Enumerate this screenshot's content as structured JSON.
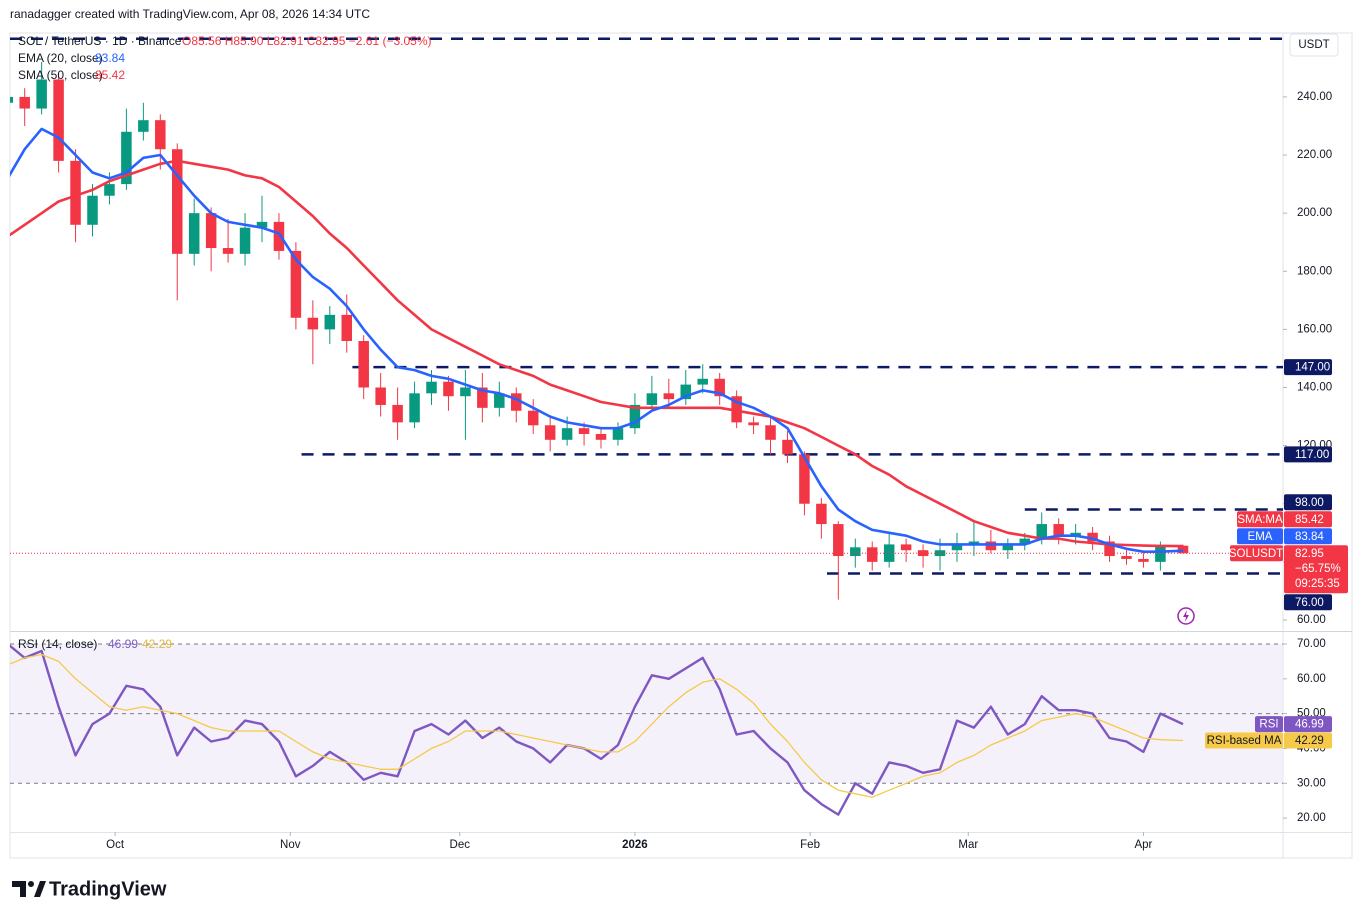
{
  "attribution": "ranadagger created with TradingView.com, Apr 08, 2026 14:34 UTC",
  "brand": "TradingView",
  "chart_data": [
    {
      "type": "candlestick",
      "title": "SOL / TetherUS · 1D · Binance",
      "ohlc_text": "O85.56 H85.90 L82.91 C82.95 −2.61 (−3.05%)",
      "unit": "USDT",
      "x": [
        -19,
        -16,
        -13,
        -10,
        -7,
        -4,
        -1,
        2,
        5,
        8,
        11,
        14,
        17,
        20,
        23,
        26,
        29,
        32,
        35,
        38,
        41,
        44,
        47,
        50,
        53,
        56,
        59,
        62,
        65,
        68,
        71,
        74,
        77,
        80,
        83,
        86,
        89,
        92,
        95,
        98,
        101,
        104,
        107,
        110,
        113,
        116,
        119,
        122,
        125,
        128,
        131,
        134,
        137,
        140,
        143,
        146,
        149,
        152,
        155,
        158,
        161,
        164,
        167,
        170,
        173,
        176,
        179,
        182,
        185,
        189
      ],
      "open": [
        238,
        240,
        236,
        246,
        218,
        196,
        206,
        210,
        228,
        232,
        222,
        186,
        200,
        188,
        186,
        195,
        197,
        187,
        164,
        160,
        165,
        156,
        140,
        134,
        128,
        138,
        142,
        137,
        140,
        133,
        138,
        132,
        127,
        122,
        126,
        124,
        122,
        126,
        134,
        138,
        136,
        141,
        143,
        137,
        128,
        127,
        122,
        117,
        100,
        93,
        82,
        85,
        80,
        86,
        84,
        82,
        84,
        86,
        87,
        84,
        86,
        88,
        93,
        89,
        90,
        87,
        82,
        81,
        80,
        85.56
      ],
      "high": [
        245,
        243,
        252,
        248,
        222,
        210,
        214,
        236,
        238,
        234,
        224,
        205,
        202,
        198,
        200,
        206,
        200,
        190,
        170,
        168,
        172,
        158,
        145,
        140,
        142,
        146,
        144,
        146,
        145,
        142,
        140,
        136,
        130,
        130,
        128,
        126,
        128,
        138,
        144,
        143,
        146,
        148,
        145,
        139,
        130,
        130,
        125,
        118,
        102,
        94,
        88,
        87,
        90,
        88,
        86,
        88,
        90,
        94,
        91,
        88,
        90,
        97,
        95,
        93,
        92,
        89,
        84,
        83,
        87,
        85.9
      ],
      "low": [
        232,
        230,
        234,
        214,
        190,
        192,
        203,
        208,
        225,
        215,
        170,
        182,
        180,
        183,
        182,
        190,
        184,
        160,
        148,
        155,
        152,
        136,
        130,
        122,
        126,
        134,
        132,
        122,
        128,
        130,
        128,
        124,
        118,
        120,
        120,
        119,
        120,
        124,
        132,
        133,
        134,
        138,
        134,
        126,
        124,
        117,
        114,
        96,
        88,
        67,
        78,
        77,
        78,
        80,
        78,
        77,
        80,
        82,
        83,
        81,
        84,
        86,
        86,
        86,
        84,
        80,
        79,
        78,
        77,
        82.91
      ],
      "close": [
        240,
        236,
        246,
        218,
        196,
        206,
        210,
        228,
        232,
        222,
        186,
        200,
        188,
        186,
        195,
        197,
        187,
        164,
        160,
        165,
        156,
        140,
        134,
        128,
        138,
        142,
        137,
        140,
        133,
        138,
        132,
        127,
        122,
        126,
        124,
        122,
        126,
        134,
        138,
        136,
        141,
        143,
        137,
        128,
        127,
        122,
        117,
        100,
        93,
        82,
        85,
        80,
        86,
        84,
        82,
        84,
        86,
        87,
        84,
        86,
        88,
        93,
        89,
        90,
        87,
        82,
        81,
        80,
        85.56,
        82.95
      ],
      "up_color": "#089981",
      "down_color": "#f23645",
      "series": [
        {
          "name": "SMA:MA",
          "legend": "SMA (50, close)",
          "color": "#f23645",
          "last": 85.42,
          "values": [
            192,
            196,
            200,
            204,
            206,
            208,
            211,
            213,
            215,
            217,
            218,
            217,
            216,
            215,
            213,
            212,
            209,
            204,
            199,
            193,
            188,
            182,
            176,
            170,
            165,
            160,
            157,
            154,
            151,
            148,
            146,
            144,
            141,
            139,
            137,
            135,
            134,
            133,
            133,
            133,
            133,
            133,
            133,
            132,
            131,
            130,
            128,
            126,
            123,
            120,
            117,
            113,
            110,
            106,
            103,
            100,
            97,
            94,
            92,
            90,
            89,
            88,
            88,
            87,
            86.5,
            86,
            85.8,
            85.6,
            85.5,
            85.42
          ]
        },
        {
          "name": "EMA",
          "legend": "EMA (20, close)",
          "color": "#2962ff",
          "last": 83.84,
          "values": [
            212,
            222,
            229,
            226,
            220,
            214,
            212,
            214,
            219,
            220,
            213,
            206,
            200,
            197,
            196,
            195,
            193,
            184,
            178,
            174,
            168,
            160,
            153,
            147,
            146,
            144,
            143,
            141,
            139,
            138,
            136,
            133,
            130,
            128,
            127,
            126,
            126,
            128,
            132,
            134,
            137,
            139,
            138,
            135,
            133,
            130,
            126,
            116,
            106,
            98,
            94,
            91,
            90,
            89,
            87,
            86,
            86,
            86,
            86,
            86,
            86,
            88,
            89,
            89,
            88,
            86,
            84.5,
            83.5,
            83.5,
            83.84
          ]
        }
      ],
      "price": {
        "name": "SOLUSDT",
        "value": 82.95,
        "change": "−65.75%",
        "countdown": "09:25:35",
        "color": "#f23645"
      },
      "level_color": "#0d1a63",
      "levels": [
        {
          "value": 260,
          "x0": -18.6
        },
        {
          "value": 147,
          "label": "147.00",
          "x0": 42
        },
        {
          "value": 117,
          "label": "117.00",
          "x0": 33
        },
        {
          "value": 98,
          "label": "98.00",
          "x0": 161
        },
        {
          "value": 76,
          "label": "76.00",
          "x0": 126
        }
      ],
      "xlim": [
        -18.6,
        206.7
      ],
      "ylim": [
        56.2,
        262
      ],
      "yticks": [
        {
          "value": 60,
          "label": "60.00"
        },
        {
          "value": 80,
          "label": "80.00"
        },
        {
          "value": 100,
          "label": "100.00"
        },
        {
          "value": 120,
          "label": "120.00"
        },
        {
          "value": 140,
          "label": "140.00"
        },
        {
          "value": 160,
          "label": "160.00"
        },
        {
          "value": 180,
          "label": "180.00"
        },
        {
          "value": 200,
          "label": "200.00"
        },
        {
          "value": 220,
          "label": "220.00"
        },
        {
          "value": 240,
          "label": "240.00"
        }
      ]
    },
    {
      "type": "line",
      "title": "RSI (14, close)",
      "x": [
        -19,
        -16,
        -13,
        -10,
        -7,
        -4,
        -1,
        2,
        5,
        8,
        11,
        14,
        17,
        20,
        23,
        26,
        29,
        32,
        35,
        38,
        41,
        44,
        47,
        50,
        53,
        56,
        59,
        62,
        65,
        68,
        71,
        74,
        77,
        80,
        83,
        86,
        89,
        92,
        95,
        98,
        101,
        104,
        107,
        110,
        113,
        116,
        119,
        122,
        125,
        128,
        131,
        134,
        137,
        140,
        143,
        146,
        149,
        152,
        155,
        158,
        161,
        164,
        167,
        170,
        173,
        176,
        179,
        182,
        185,
        189
      ],
      "series": [
        {
          "name": "RSI",
          "color": "#7e57c2",
          "last": 46.99,
          "values": [
            70,
            66,
            68,
            52,
            38,
            47,
            50,
            58,
            57,
            52,
            38,
            46,
            42,
            43,
            48,
            47,
            42,
            32,
            35,
            39,
            36,
            31,
            33,
            32,
            45,
            47,
            44,
            48,
            43,
            46,
            42,
            40,
            36,
            41,
            40,
            37,
            41,
            52,
            61,
            60,
            63,
            66,
            57,
            44,
            45,
            40,
            36,
            28,
            24,
            21,
            30,
            27,
            36,
            35,
            33,
            34,
            48,
            46,
            52,
            44,
            47,
            55,
            51,
            51,
            50,
            43,
            42,
            39,
            50,
            46.99
          ]
        },
        {
          "name": "RSI-based MA",
          "color": "#f7c948",
          "last": 42.29,
          "values": [
            64,
            66,
            67,
            65,
            60,
            56,
            52,
            51,
            52,
            51,
            50,
            48,
            46,
            45,
            45,
            45,
            45,
            42,
            39,
            37,
            36,
            35,
            34,
            34,
            37,
            40,
            42,
            45,
            45,
            45,
            44,
            43,
            42,
            41,
            40,
            39,
            39,
            42,
            47,
            52,
            56,
            59,
            60,
            57,
            53,
            47,
            42,
            36,
            31,
            28,
            27,
            26,
            28,
            30,
            32,
            33,
            36,
            38,
            41,
            43,
            45,
            48,
            49,
            50,
            49,
            47,
            45,
            43,
            42.5,
            42.29
          ]
        }
      ],
      "levels": [
        70,
        50,
        30
      ],
      "band_color": "#ede7f6",
      "xlim": [
        -18.6,
        206.7
      ],
      "xticks": [
        {
          "value": 0,
          "label": "Oct"
        },
        {
          "value": 31,
          "label": "Nov"
        },
        {
          "value": 61,
          "label": "Dec"
        },
        {
          "value": 92,
          "label": "2026"
        },
        {
          "value": 123,
          "label": "Feb"
        },
        {
          "value": 151,
          "label": "Mar"
        },
        {
          "value": 182,
          "label": "Apr"
        }
      ],
      "ylim": [
        16.0,
        73.45
      ],
      "yticks": [
        {
          "value": 20,
          "label": "20.00"
        },
        {
          "value": 30,
          "label": "30.00"
        },
        {
          "value": 40,
          "label": "40.00"
        },
        {
          "value": 50,
          "label": "50.00"
        },
        {
          "value": 60,
          "label": "60.00"
        },
        {
          "value": 70,
          "label": "70.00"
        }
      ]
    }
  ]
}
